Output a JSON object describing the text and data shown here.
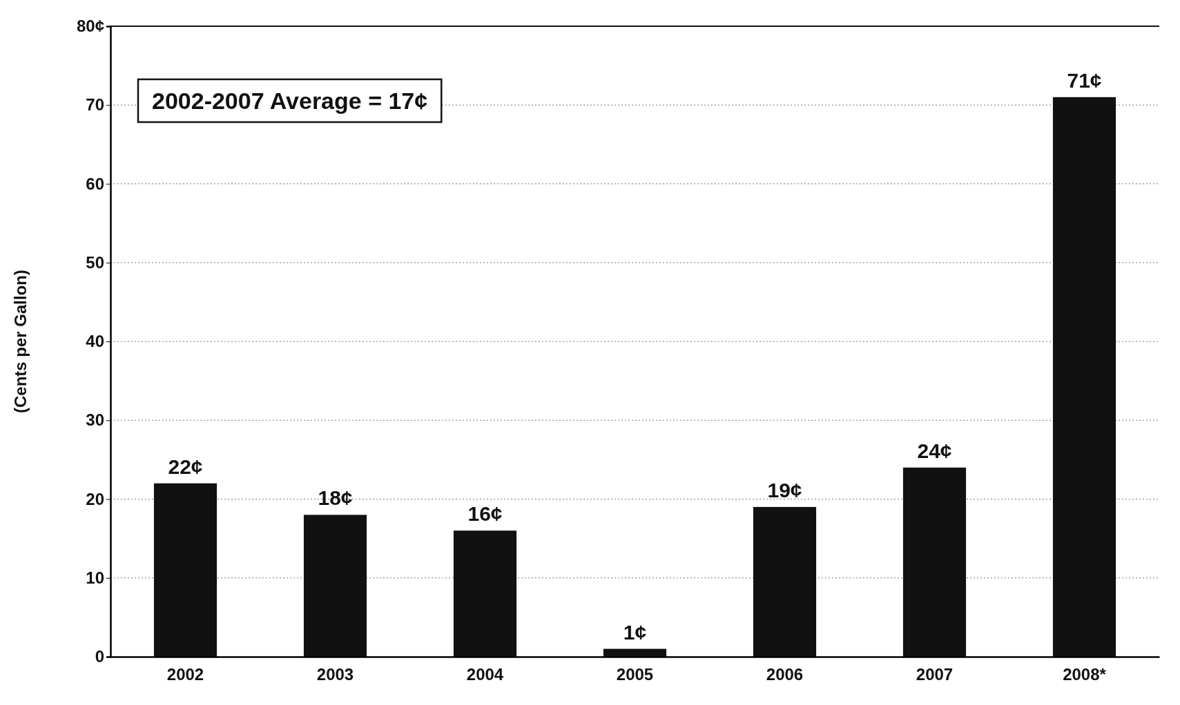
{
  "chart_data": {
    "type": "bar",
    "ylabel": "(Cents per Gallon)",
    "categories": [
      "2002",
      "2003",
      "2004",
      "2005",
      "2006",
      "2007",
      "2008*"
    ],
    "values": [
      22,
      18,
      16,
      1,
      19,
      24,
      71
    ],
    "value_labels": [
      "22¢",
      "18¢",
      "16¢",
      "1¢",
      "19¢",
      "24¢",
      "71¢"
    ],
    "color": "#111111",
    "ylim": [
      0,
      80
    ],
    "yticks": [
      0,
      10,
      20,
      30,
      40,
      50,
      60,
      70,
      {
        "value": 80,
        "label": "80¢"
      }
    ],
    "grid": "y",
    "annotations": [
      "2002-2007 Average = 17¢"
    ]
  }
}
